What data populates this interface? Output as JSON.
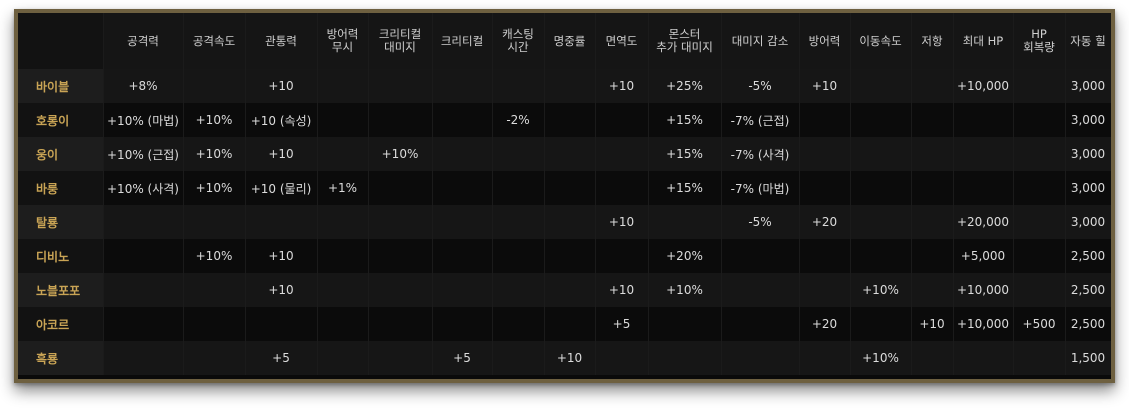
{
  "table": {
    "headers": [
      "",
      "공격력",
      "공격속도",
      "관통력",
      "방어력\n무시",
      "크리티컬\n대미지",
      "크리티컬",
      "캐스팅\n시간",
      "명중률",
      "면역도",
      "몬스터\n추가 대미지",
      "대미지 감소",
      "방어력",
      "이동속도",
      "저항",
      "최대 HP",
      "HP\n회복량",
      "자동 힐"
    ],
    "rows": [
      {
        "name": "바이블",
        "cells": [
          "+8%",
          "",
          "+10",
          "",
          "",
          "",
          "",
          "",
          "+10",
          "+25%",
          "-5%",
          "+10",
          "",
          "",
          "+10,000",
          "",
          "3,000"
        ]
      },
      {
        "name": "호롱이",
        "cells": [
          "+10% (마법)",
          "+10%",
          "+10 (속성)",
          "",
          "",
          "",
          "-2%",
          "",
          "",
          "+15%",
          "-7% (근접)",
          "",
          "",
          "",
          "",
          "",
          "3,000"
        ]
      },
      {
        "name": "웅이",
        "cells": [
          "+10% (근접)",
          "+10%",
          "+10",
          "",
          "+10%",
          "",
          "",
          "",
          "",
          "+15%",
          "-7% (사격)",
          "",
          "",
          "",
          "",
          "",
          "3,000"
        ]
      },
      {
        "name": "바룽",
        "cells": [
          "+10% (사격)",
          "+10%",
          "+10 (물리)",
          "+1%",
          "",
          "",
          "",
          "",
          "",
          "+15%",
          "-7% (마법)",
          "",
          "",
          "",
          "",
          "",
          "3,000"
        ]
      },
      {
        "name": "탈룡",
        "cells": [
          "",
          "",
          "",
          "",
          "",
          "",
          "",
          "",
          "+10",
          "",
          "-5%",
          "+20",
          "",
          "",
          "+20,000",
          "",
          "3,000"
        ]
      },
      {
        "name": "디비노",
        "cells": [
          "",
          "+10%",
          "+10",
          "",
          "",
          "",
          "",
          "",
          "",
          "+20%",
          "",
          "",
          "",
          "",
          "+5,000",
          "",
          "2,500"
        ]
      },
      {
        "name": "노블포포",
        "cells": [
          "",
          "",
          "+10",
          "",
          "",
          "",
          "",
          "",
          "+10",
          "+10%",
          "",
          "",
          "+10%",
          "",
          "+10,000",
          "",
          "2,500"
        ]
      },
      {
        "name": "아코르",
        "cells": [
          "",
          "",
          "",
          "",
          "",
          "",
          "",
          "",
          "+5",
          "",
          "",
          "+20",
          "",
          "+10",
          "+10,000",
          "+500",
          "2,500"
        ]
      },
      {
        "name": "흑룡",
        "cells": [
          "",
          "",
          "+5",
          "",
          "",
          "+5",
          "",
          "+10",
          "",
          "",
          "",
          "",
          "+10%",
          "",
          "",
          "",
          "1,500"
        ]
      }
    ]
  }
}
